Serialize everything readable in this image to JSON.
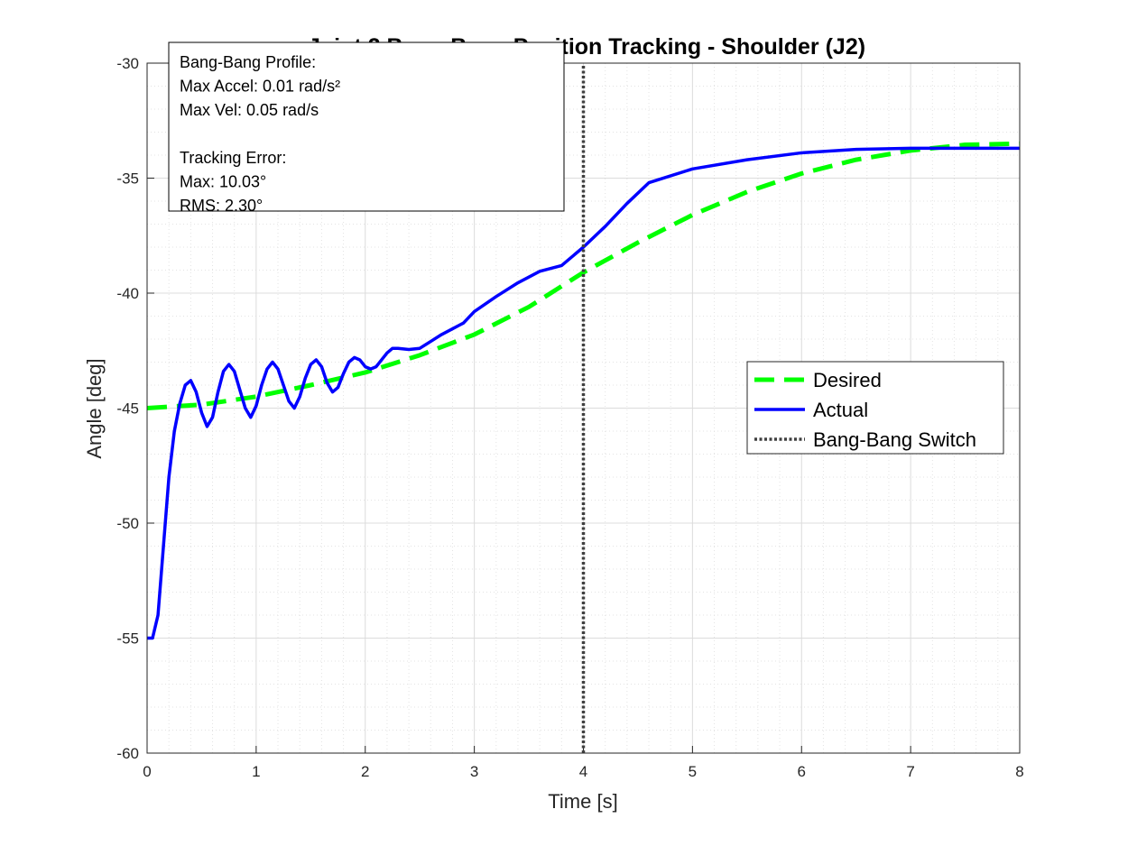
{
  "chart_data": {
    "type": "line",
    "title": "Joint 2 Bang-Bang Position Tracking - Shoulder (J2)",
    "xlabel": "Time [s]",
    "ylabel": "Angle [deg]",
    "xlim": [
      0,
      8
    ],
    "ylim": [
      -60,
      -30
    ],
    "xticks": [
      0,
      1,
      2,
      3,
      4,
      5,
      6,
      7,
      8
    ],
    "yticks": [
      -60,
      -55,
      -50,
      -45,
      -40,
      -35,
      -30
    ],
    "grid": true,
    "minor_grid": true,
    "legend_position": "right",
    "series": [
      {
        "name": "Desired",
        "color": "#00ff00",
        "style": "dashed",
        "x": [
          0,
          0.5,
          1,
          1.5,
          2,
          2.5,
          3,
          3.5,
          4,
          4.5,
          5,
          5.5,
          6,
          6.5,
          7,
          7.5,
          8
        ],
        "y": [
          -45.0,
          -44.85,
          -44.5,
          -44.0,
          -43.45,
          -42.7,
          -41.8,
          -40.6,
          -39.1,
          -37.8,
          -36.6,
          -35.6,
          -34.8,
          -34.2,
          -33.8,
          -33.55,
          -33.5
        ]
      },
      {
        "name": "Actual",
        "color": "#0000ff",
        "style": "solid",
        "x": [
          0,
          0.05,
          0.1,
          0.15,
          0.2,
          0.25,
          0.3,
          0.35,
          0.4,
          0.45,
          0.5,
          0.55,
          0.6,
          0.65,
          0.7,
          0.75,
          0.8,
          0.85,
          0.9,
          0.95,
          1.0,
          1.05,
          1.1,
          1.15,
          1.2,
          1.25,
          1.3,
          1.35,
          1.4,
          1.45,
          1.5,
          1.55,
          1.6,
          1.65,
          1.7,
          1.75,
          1.8,
          1.85,
          1.9,
          1.95,
          2.0,
          2.05,
          2.1,
          2.15,
          2.2,
          2.25,
          2.3,
          2.4,
          2.5,
          2.6,
          2.7,
          2.8,
          2.9,
          3.0,
          3.2,
          3.4,
          3.6,
          3.8,
          4.0,
          4.2,
          4.4,
          4.6,
          5.0,
          5.5,
          6.0,
          6.5,
          7.0,
          7.5,
          8.0
        ],
        "y": [
          -55.0,
          -55.0,
          -54.0,
          -51.0,
          -48.0,
          -46.0,
          -44.8,
          -44.0,
          -43.8,
          -44.3,
          -45.2,
          -45.8,
          -45.4,
          -44.3,
          -43.4,
          -43.1,
          -43.4,
          -44.2,
          -45.0,
          -45.4,
          -44.9,
          -44.0,
          -43.3,
          -43.0,
          -43.3,
          -44.0,
          -44.7,
          -45.0,
          -44.5,
          -43.7,
          -43.1,
          -42.9,
          -43.2,
          -43.9,
          -44.3,
          -44.1,
          -43.5,
          -43.0,
          -42.8,
          -42.9,
          -43.2,
          -43.3,
          -43.2,
          -42.9,
          -42.6,
          -42.4,
          -42.4,
          -42.45,
          -42.4,
          -42.1,
          -41.8,
          -41.55,
          -41.3,
          -40.8,
          -40.15,
          -39.55,
          -39.05,
          -38.8,
          -38.0,
          -37.1,
          -36.1,
          -35.2,
          -34.6,
          -34.2,
          -33.9,
          -33.75,
          -33.7,
          -33.7,
          -33.7
        ]
      },
      {
        "name": "Bang-Bang Switch",
        "color": "#404040",
        "style": "dotted",
        "x": [
          4,
          4
        ],
        "y": [
          -60,
          -30
        ]
      }
    ],
    "annotation": {
      "lines": [
        "Bang-Bang Profile:",
        "Max Accel: 0.01 rad/s²",
        "Max Vel: 0.05 rad/s",
        "",
        "Tracking Error:",
        "Max: 10.03°",
        "RMS: 2.30°"
      ]
    }
  }
}
